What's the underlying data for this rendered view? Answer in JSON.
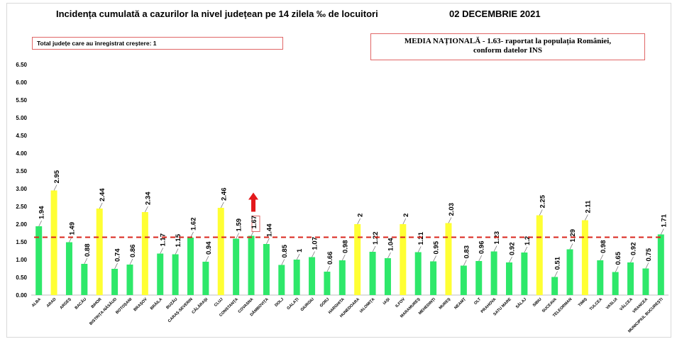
{
  "header": {
    "title": "Incidența cumulată a cazurilor la nivel județean pe 14 zilela ‰ de locuitori",
    "date": "02 DECEMBRIE 2021"
  },
  "info": {
    "counties_increase": "Total județe care au înregistrat creștere: 1",
    "national_line1": "MEDIA NAȚIONALĂ  - 1.63-  raportat la populația României,",
    "national_line2": "conform datelor INS"
  },
  "colors": {
    "green": "#2ee86a",
    "yellow": "#ffff33",
    "reference_line": "#d9261c",
    "arrow": "#e3181b",
    "highlight_border": "#e06666"
  },
  "chart_data": {
    "type": "bar",
    "title": "Incidența cumulată a cazurilor la nivel județean pe 14 zilela ‰ de locuitori",
    "ylim": [
      0,
      6.5
    ],
    "yticks": [
      "0.00",
      "0.50",
      "1.00",
      "1.50",
      "2.00",
      "2.50",
      "3.00",
      "3.50",
      "4.00",
      "4.50",
      "5.00",
      "5.50",
      "6.00",
      "6.50"
    ],
    "reference_value": 1.63,
    "reference_label": "MEDIA NAȚIONALĂ",
    "categories": [
      "ALBA",
      "ARAD",
      "ARGEȘ",
      "BACĂU",
      "BIHOR",
      "BISTRIȚA-NĂSĂUD",
      "BOTOȘANI",
      "BRAȘOV",
      "BRĂILA",
      "BUZĂU",
      "CARAȘ-SEVERIN",
      "CĂLĂRAȘI",
      "CLUJ",
      "CONSTANȚA",
      "COVASNA",
      "DÂMBOVIȚA",
      "DOLJ",
      "GALAȚI",
      "GIURGIU",
      "GORJ",
      "HARGHITA",
      "HUNEDOARA",
      "IALOMIȚA",
      "IAȘI",
      "ILFOV",
      "MARAMUREȘ",
      "MEHEDINȚI",
      "MUREȘ",
      "NEAMȚ",
      "OLT",
      "PRAHOVA",
      "SATU MARE",
      "SĂLAJ",
      "SIBIU",
      "SUCEAVA",
      "TELEORMAN",
      "TIMIȘ",
      "TULCEA",
      "VASLUI",
      "VÂLCEA",
      "VRANCEA",
      "MUNICIPIUL BUCUREȘTI"
    ],
    "values": [
      1.94,
      2.95,
      1.49,
      0.88,
      2.44,
      0.74,
      0.86,
      2.34,
      1.17,
      1.15,
      1.62,
      0.94,
      2.46,
      1.59,
      1.67,
      1.44,
      0.85,
      1,
      1.07,
      0.66,
      0.98,
      2,
      1.22,
      1.04,
      2,
      1.21,
      0.95,
      2.03,
      0.83,
      0.96,
      1.23,
      0.92,
      1.2,
      2.25,
      0.51,
      1.29,
      2.11,
      0.98,
      0.65,
      0.92,
      0.75,
      1.71
    ],
    "value_labels": [
      "1.94",
      "2.95",
      "1.49",
      "0.88",
      "2.44",
      "0.74",
      "0.86",
      "2.34",
      "1.17",
      "1.15",
      "1.62",
      "0.94",
      "2.46",
      "1.59",
      "1.67",
      "1.44",
      "0.85",
      "1",
      "1.07",
      "0.66",
      "0.98",
      "2",
      "1.22",
      "1.04",
      "2",
      "1.21",
      "0.95",
      "2.03",
      "0.83",
      "0.96",
      "1.23",
      "0.92",
      "1.2",
      "2.25",
      "0.51",
      "1.29",
      "2.11",
      "0.98",
      "0.65",
      "0.92",
      "0.75",
      "1.71"
    ],
    "bar_colors": [
      "green",
      "yellow",
      "green",
      "green",
      "yellow",
      "green",
      "green",
      "yellow",
      "green",
      "green",
      "green",
      "green",
      "yellow",
      "green",
      "green",
      "green",
      "green",
      "green",
      "green",
      "green",
      "green",
      "yellow",
      "green",
      "green",
      "yellow",
      "green",
      "green",
      "yellow",
      "green",
      "green",
      "green",
      "green",
      "green",
      "yellow",
      "green",
      "green",
      "yellow",
      "green",
      "green",
      "green",
      "green",
      "green"
    ],
    "increase_county": "COVASNA"
  }
}
